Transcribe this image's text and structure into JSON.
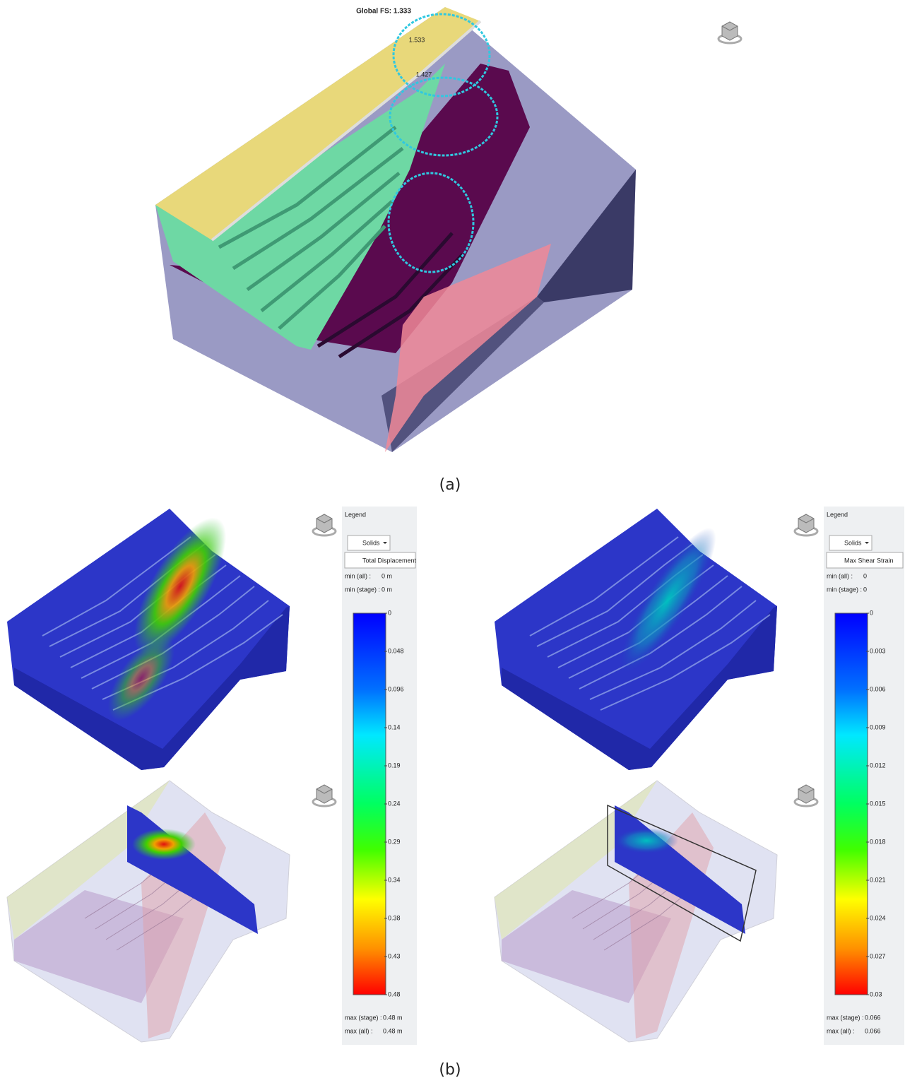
{
  "panel_a": {
    "global_fs": "Global FS: 1.333",
    "surface_labels": [
      "1.533",
      "1.427"
    ],
    "caption": "(a)"
  },
  "panel_b": {
    "caption": "(b)",
    "legends": [
      {
        "title": "Legend",
        "display": "Solids",
        "quantity": "Total Displacement",
        "min_all_label": "min (all) :",
        "min_all": "0 m",
        "min_stage_label": "min (stage) :",
        "min_stage": "0 m",
        "ticks": [
          "0",
          "0.048",
          "0.096",
          "0.14",
          "0.19",
          "0.24",
          "0.29",
          "0.34",
          "0.38",
          "0.43",
          "0.48"
        ],
        "max_stage_label": "max (stage) :",
        "max_stage": "0.48 m",
        "max_all_label": "max (all) :",
        "max_all": "0.48 m"
      },
      {
        "title": "Legend",
        "display": "Solids",
        "quantity": "Max Shear Strain",
        "min_all_label": "min (all) :",
        "min_all": "0",
        "min_stage_label": "min (stage) :",
        "min_stage": "0",
        "ticks": [
          "0",
          "0.003",
          "0.006",
          "0.009",
          "0.012",
          "0.015",
          "0.018",
          "0.021",
          "0.024",
          "0.027",
          "0.03"
        ],
        "max_stage_label": "max (stage) :",
        "max_stage": "0.066",
        "max_all_label": "max (all) :",
        "max_all": "0.066"
      }
    ]
  }
}
